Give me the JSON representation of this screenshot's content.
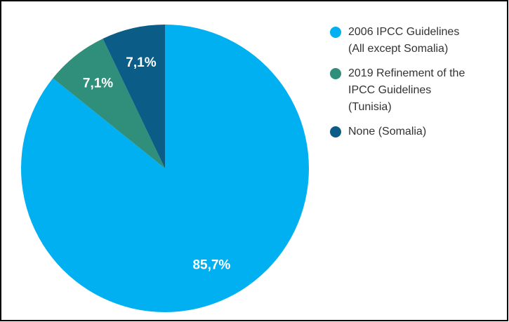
{
  "chart_data": {
    "type": "pie",
    "categories": [
      "2006 IPCC Guidelines\n(All except Somalia)",
      "2019 Refinement of the\nIPCC Guidelines\n(Tunisia)",
      "None (Somalia)"
    ],
    "values": [
      85.7,
      7.1,
      7.1
    ],
    "value_labels": [
      "85,7%",
      "7,1%",
      "7,1%"
    ],
    "colors": [
      "#00b0f0",
      "#2f8f7b",
      "#0b5d88"
    ],
    "legend": "right"
  }
}
